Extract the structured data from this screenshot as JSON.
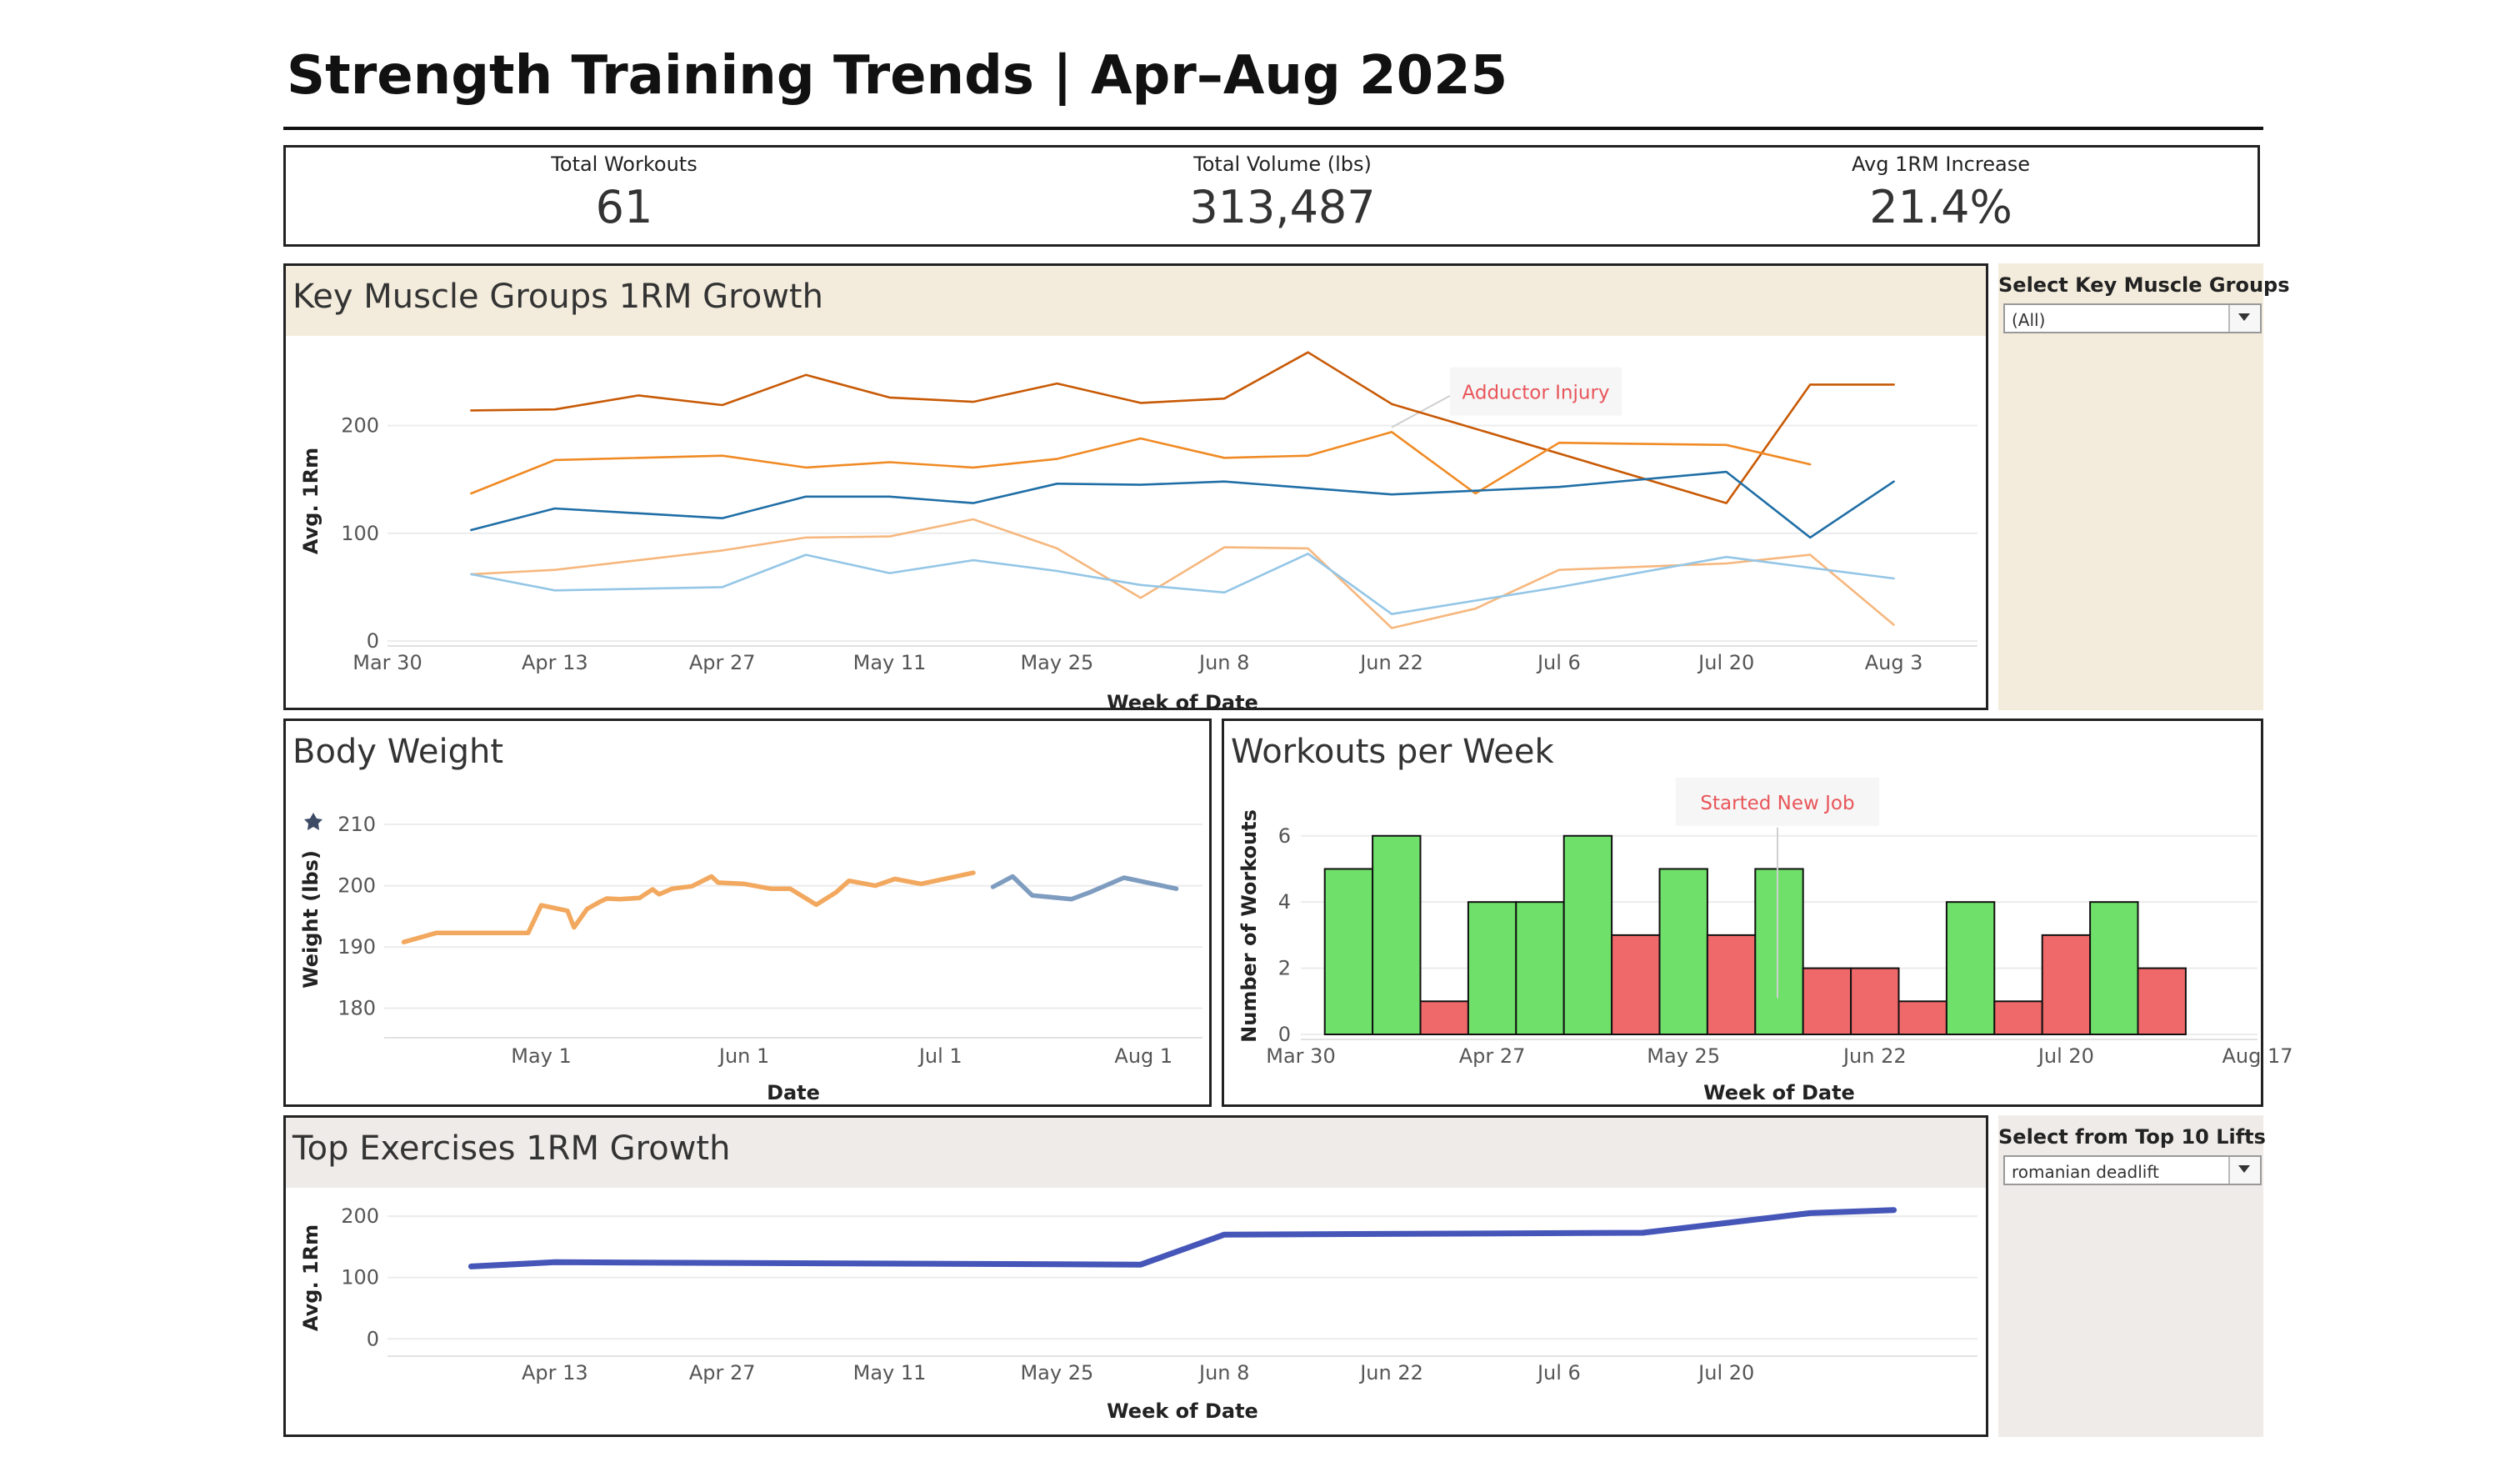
{
  "page": {
    "title": "Strength Training Trends | Apr–Aug 2025"
  },
  "kpis": [
    {
      "label": "Total Workouts",
      "value": "61"
    },
    {
      "label": "Total Volume (lbs)",
      "value": "313,487"
    },
    {
      "label": "Avg 1RM Increase",
      "value": "21.4%"
    }
  ],
  "filters": {
    "muscle_groups": {
      "label": "Select Key Muscle Groups",
      "value": "(All)"
    },
    "top_lifts": {
      "label": "Select from Top 10 Lifts",
      "value": "romanian deadlift"
    }
  },
  "panels": {
    "muscle": {
      "title": "Key Muscle Groups 1RM Growth"
    },
    "bodyweight": {
      "title": "Body Weight"
    },
    "workouts": {
      "title": "Workouts per Week"
    },
    "exercises": {
      "title": "Top Exercises 1RM Growth"
    }
  },
  "icons": {
    "pin": "pin-icon",
    "dropdown": "chevron-down-icon"
  },
  "chart_data": [
    {
      "id": "muscle",
      "type": "line",
      "xlabel": "Week of Date",
      "ylabel": "Avg. 1Rm",
      "ylim": [
        0,
        260
      ],
      "yticks": [
        0,
        100,
        200
      ],
      "grid": true,
      "x_domain": [
        "2025-03-30",
        "2025-08-10"
      ],
      "xtick_labels": [
        {
          "date": "2025-03-30",
          "label": "Mar 30"
        },
        {
          "date": "2025-04-13",
          "label": "Apr 13"
        },
        {
          "date": "2025-04-27",
          "label": "Apr 27"
        },
        {
          "date": "2025-05-11",
          "label": "May 11"
        },
        {
          "date": "2025-05-25",
          "label": "May 25"
        },
        {
          "date": "2025-06-08",
          "label": "Jun 8"
        },
        {
          "date": "2025-06-22",
          "label": "Jun 22"
        },
        {
          "date": "2025-07-06",
          "label": "Jul 6"
        },
        {
          "date": "2025-07-20",
          "label": "Jul 20"
        },
        {
          "date": "2025-08-03",
          "label": "Aug 3"
        }
      ],
      "annotations": [
        {
          "text": "Adductor Injury",
          "x": "2025-06-22",
          "y": 220,
          "color": "#e8555a"
        }
      ],
      "series": [
        {
          "color": "#c85a06",
          "x": [
            "2025-04-06",
            "2025-04-13",
            "2025-04-20",
            "2025-04-27",
            "2025-05-04",
            "2025-05-11",
            "2025-05-18",
            "2025-05-25",
            "2025-06-01",
            "2025-06-08",
            "2025-06-15",
            "2025-06-22",
            "2025-07-20",
            "2025-07-27",
            "2025-08-03"
          ],
          "y": [
            214,
            215,
            228,
            219,
            247,
            226,
            222,
            239,
            221,
            225,
            268,
            220,
            128,
            238,
            238
          ]
        },
        {
          "color": "#f08a24",
          "x": [
            "2025-04-06",
            "2025-04-13",
            "2025-04-27",
            "2025-05-04",
            "2025-05-11",
            "2025-05-18",
            "2025-05-25",
            "2025-06-01",
            "2025-06-08",
            "2025-06-15",
            "2025-06-22",
            "2025-06-29",
            "2025-07-06",
            "2025-07-20",
            "2025-07-27"
          ],
          "y": [
            137,
            168,
            172,
            161,
            166,
            161,
            169,
            188,
            170,
            172,
            194,
            137,
            184,
            182,
            164
          ]
        },
        {
          "color": "#1f6ea6",
          "x": [
            "2025-04-06",
            "2025-04-13",
            "2025-04-27",
            "2025-05-04",
            "2025-05-11",
            "2025-05-18",
            "2025-05-25",
            "2025-06-01",
            "2025-06-08",
            "2025-06-22",
            "2025-07-06",
            "2025-07-20",
            "2025-07-27",
            "2025-08-03"
          ],
          "y": [
            103,
            123,
            114,
            134,
            134,
            128,
            146,
            145,
            148,
            136,
            143,
            157,
            96,
            148
          ]
        },
        {
          "color": "#f6b77e",
          "x": [
            "2025-04-06",
            "2025-04-13",
            "2025-04-27",
            "2025-05-04",
            "2025-05-11",
            "2025-05-18",
            "2025-05-25",
            "2025-06-01",
            "2025-06-08",
            "2025-06-15",
            "2025-06-22",
            "2025-06-29",
            "2025-07-06",
            "2025-07-20",
            "2025-07-27",
            "2025-08-03"
          ],
          "y": [
            62,
            66,
            84,
            96,
            97,
            113,
            86,
            40,
            87,
            86,
            12,
            30,
            66,
            72,
            80,
            15
          ]
        },
        {
          "color": "#94c6e6",
          "x": [
            "2025-04-06",
            "2025-04-13",
            "2025-04-27",
            "2025-05-04",
            "2025-05-11",
            "2025-05-18",
            "2025-05-25",
            "2025-06-01",
            "2025-06-08",
            "2025-06-15",
            "2025-06-22",
            "2025-07-06",
            "2025-07-20",
            "2025-08-03"
          ],
          "y": [
            62,
            47,
            50,
            80,
            63,
            75,
            65,
            52,
            45,
            81,
            25,
            50,
            78,
            58
          ]
        }
      ]
    },
    {
      "id": "bodyweight",
      "type": "line",
      "xlabel": "Date",
      "ylabel": "Weight (lbs)",
      "ylim": [
        176,
        213
      ],
      "yticks": [
        180,
        190,
        200,
        210
      ],
      "grid": true,
      "x_domain": [
        "2025-04-07",
        "2025-08-10"
      ],
      "xtick_labels": [
        {
          "date": "2025-05-01",
          "label": "May 1"
        },
        {
          "date": "2025-06-01",
          "label": "Jun 1"
        },
        {
          "date": "2025-07-01",
          "label": "Jul 1"
        },
        {
          "date": "2025-08-01",
          "label": "Aug 1"
        }
      ],
      "series": [
        {
          "color": "#f2a85e",
          "x": [
            "2025-04-10",
            "2025-04-15",
            "2025-04-20",
            "2025-04-25",
            "2025-04-29",
            "2025-05-01",
            "2025-05-05",
            "2025-05-06",
            "2025-05-08",
            "2025-05-10",
            "2025-05-11",
            "2025-05-13",
            "2025-05-16",
            "2025-05-18",
            "2025-05-19",
            "2025-05-21",
            "2025-05-24",
            "2025-05-27",
            "2025-05-28",
            "2025-06-01",
            "2025-06-05",
            "2025-06-08",
            "2025-06-12",
            "2025-06-15",
            "2025-06-17",
            "2025-06-21",
            "2025-06-24",
            "2025-06-28",
            "2025-07-06"
          ],
          "y": [
            190.8,
            192.3,
            192.3,
            192.3,
            192.3,
            196.8,
            195.9,
            193.2,
            196.2,
            197.4,
            197.9,
            197.8,
            198.0,
            199.4,
            198.6,
            199.5,
            199.9,
            201.5,
            200.5,
            200.3,
            199.5,
            199.5,
            196.9,
            198.9,
            200.8,
            200.0,
            201.1,
            200.3,
            202.1
          ]
        },
        {
          "color": "#7e9cbf",
          "x": [
            "2025-07-09",
            "2025-07-12",
            "2025-07-15",
            "2025-07-21",
            "2025-07-24",
            "2025-07-29",
            "2025-08-06"
          ],
          "y": [
            199.8,
            201.5,
            198.4,
            197.8,
            199.0,
            201.3,
            199.5
          ]
        }
      ]
    },
    {
      "id": "workouts",
      "type": "bar",
      "xlabel": "Week of Date",
      "ylabel": "Number of Workouts",
      "ylim": [
        0,
        6.8
      ],
      "yticks": [
        0,
        2,
        4,
        6
      ],
      "grid": true,
      "x_domain": [
        "2025-03-30",
        "2025-08-17"
      ],
      "xtick_labels": [
        {
          "date": "2025-03-30",
          "label": "Mar 30"
        },
        {
          "date": "2025-04-27",
          "label": "Apr 27"
        },
        {
          "date": "2025-05-25",
          "label": "May 25"
        },
        {
          "date": "2025-06-22",
          "label": "Jun 22"
        },
        {
          "date": "2025-07-20",
          "label": "Jul 20"
        },
        {
          "date": "2025-08-17",
          "label": "Aug 17"
        }
      ],
      "annotations": [
        {
          "text": "Started New Job",
          "x": "2025-06-08",
          "y": 6,
          "color": "#e8555a"
        }
      ],
      "categories": [
        "2025-04-06",
        "2025-04-13",
        "2025-04-20",
        "2025-04-27",
        "2025-05-04",
        "2025-05-11",
        "2025-05-18",
        "2025-05-25",
        "2025-06-01",
        "2025-06-08",
        "2025-06-15",
        "2025-06-22",
        "2025-06-29",
        "2025-07-06",
        "2025-07-13",
        "2025-07-20",
        "2025-07-27",
        "2025-08-03"
      ],
      "values": [
        5,
        6,
        1,
        4,
        4,
        6,
        3,
        5,
        3,
        5,
        2,
        2,
        1,
        4,
        1,
        3,
        4,
        2
      ],
      "colors": {
        "high": "#6fe06a",
        "low": "#f0696a"
      },
      "high_threshold": 4
    },
    {
      "id": "exercises",
      "type": "line",
      "xlabel": "Week of Date",
      "ylabel": "Avg. 1Rm",
      "ylim": [
        -20,
        230
      ],
      "yticks": [
        0,
        100,
        200
      ],
      "grid": true,
      "x_domain": [
        "2025-03-30",
        "2025-08-10"
      ],
      "xtick_labels": [
        {
          "date": "2025-04-13",
          "label": "Apr 13"
        },
        {
          "date": "2025-04-27",
          "label": "Apr 27"
        },
        {
          "date": "2025-05-11",
          "label": "May 11"
        },
        {
          "date": "2025-05-25",
          "label": "May 25"
        },
        {
          "date": "2025-06-08",
          "label": "Jun 8"
        },
        {
          "date": "2025-06-22",
          "label": "Jun 22"
        },
        {
          "date": "2025-07-06",
          "label": "Jul 6"
        },
        {
          "date": "2025-07-20",
          "label": "Jul 20"
        }
      ],
      "series": [
        {
          "color": "#4656b8",
          "x": [
            "2025-04-06",
            "2025-04-13",
            "2025-06-01",
            "2025-06-08",
            "2025-07-13",
            "2025-07-27",
            "2025-08-03"
          ],
          "y": [
            118,
            125,
            121,
            170,
            173,
            205,
            210
          ]
        }
      ]
    }
  ]
}
